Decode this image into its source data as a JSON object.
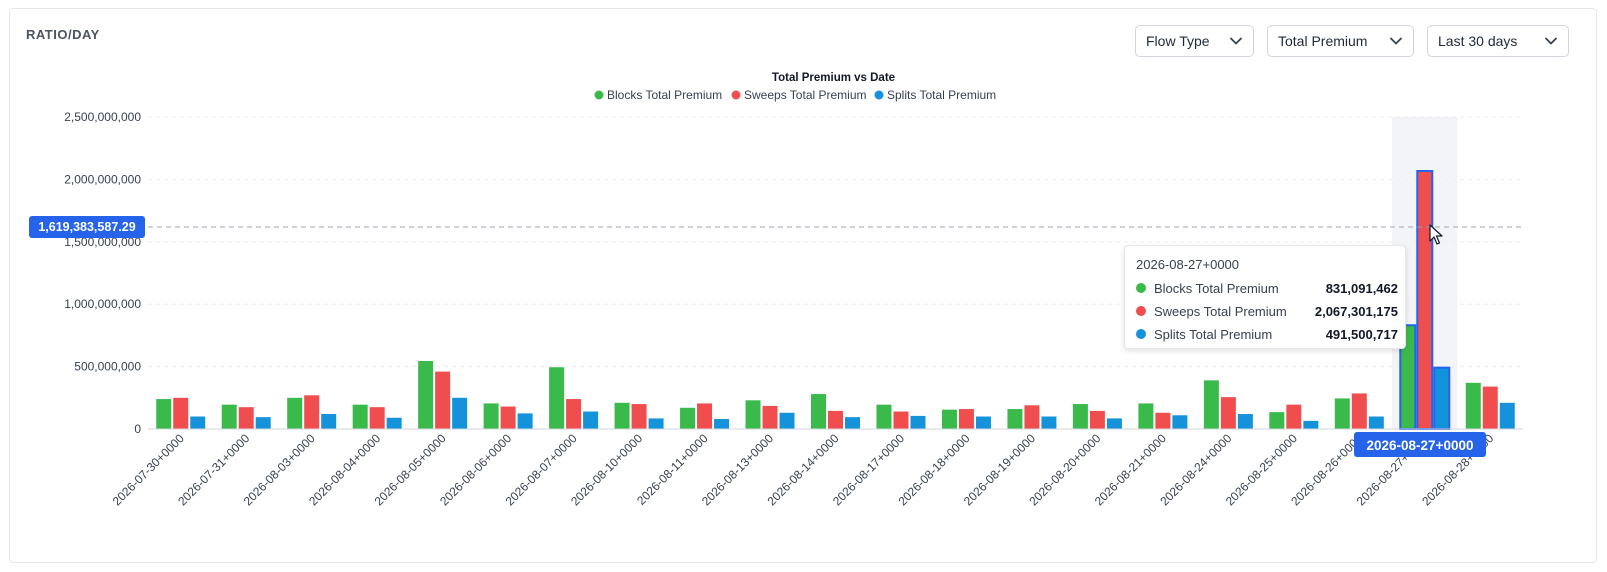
{
  "card": {
    "title": "RATIO/DAY"
  },
  "dropdowns": [
    {
      "label": "Flow Type"
    },
    {
      "label": "Total Premium"
    },
    {
      "label": "Last 30 days"
    }
  ],
  "colors": {
    "blocks": "#3bba4c",
    "sweeps": "#f04e4e",
    "splits": "#1493db",
    "highlight": "#2563eb"
  },
  "crosshair": {
    "y_value_label": "1,619,383,587.29",
    "x_value_label": "2026-08-27+0000"
  },
  "tooltip": {
    "date": "2026-08-27+0000",
    "rows": [
      {
        "name": "Blocks Total Premium",
        "value": "831,091,462"
      },
      {
        "name": "Sweeps Total Premium",
        "value": "2,067,301,175"
      },
      {
        "name": "Splits Total Premium",
        "value": "491,500,717"
      }
    ]
  },
  "chart_data": {
    "type": "bar",
    "title": "Total Premium vs Date",
    "xlabel": "",
    "ylabel": "",
    "ylim": [
      0,
      2500000000
    ],
    "yticks": [
      0,
      500000000,
      1000000000,
      1500000000,
      2000000000,
      2500000000
    ],
    "ytick_labels": [
      "0",
      "500,000,000",
      "1,000,000,000",
      "1,500,000,000",
      "2,000,000,000",
      "2,500,000,000"
    ],
    "legend_position": "top-center",
    "grid": true,
    "categories": [
      "2026-07-30+0000",
      "2026-07-31+0000",
      "2026-08-03+0000",
      "2026-08-04+0000",
      "2026-08-05+0000",
      "2026-08-06+0000",
      "2026-08-07+0000",
      "2026-08-10+0000",
      "2026-08-11+0000",
      "2026-08-13+0000",
      "2026-08-14+0000",
      "2026-08-17+0000",
      "2026-08-18+0000",
      "2026-08-19+0000",
      "2026-08-20+0000",
      "2026-08-21+0000",
      "2026-08-24+0000",
      "2026-08-25+0000",
      "2026-08-26+0000",
      "2026-08-27+0000",
      "2026-08-28+0000"
    ],
    "highlighted_category": "2026-08-27+0000",
    "series": [
      {
        "name": "Blocks Total Premium",
        "values": [
          240000000,
          195000000,
          250000000,
          195000000,
          545000000,
          205000000,
          495000000,
          210000000,
          170000000,
          230000000,
          280000000,
          195000000,
          155000000,
          160000000,
          200000000,
          205000000,
          390000000,
          135000000,
          245000000,
          831091462,
          370000000
        ]
      },
      {
        "name": "Sweeps Total Premium",
        "values": [
          250000000,
          175000000,
          270000000,
          175000000,
          460000000,
          180000000,
          240000000,
          200000000,
          205000000,
          185000000,
          145000000,
          140000000,
          160000000,
          190000000,
          145000000,
          130000000,
          255000000,
          195000000,
          285000000,
          2067301175,
          340000000
        ]
      },
      {
        "name": "Splits Total Premium",
        "values": [
          100000000,
          95000000,
          120000000,
          90000000,
          250000000,
          125000000,
          140000000,
          85000000,
          80000000,
          130000000,
          95000000,
          105000000,
          100000000,
          100000000,
          85000000,
          110000000,
          120000000,
          65000000,
          100000000,
          491500717,
          210000000
        ]
      }
    ]
  }
}
